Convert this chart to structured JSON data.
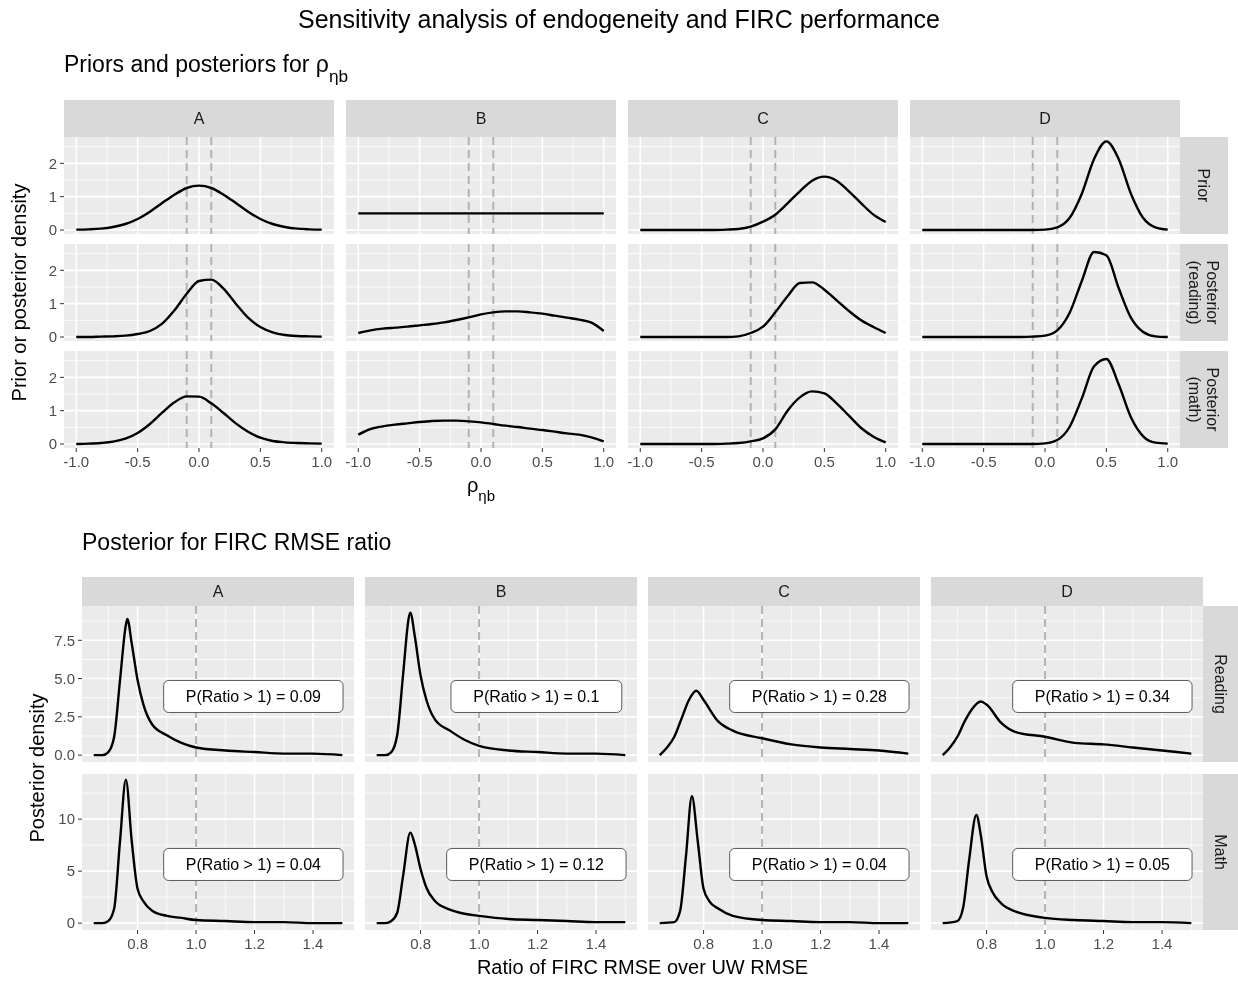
{
  "chart_data": [
    {
      "type": "other",
      "title": "Sensitivity analysis of endogeneity and FIRC performance"
    },
    {
      "type": "line",
      "title": "A",
      "subtitle": "Priors and posteriors for ρ$_{ηb}$",
      "x": [
        -1,
        -0.9,
        -0.8,
        -0.7,
        -0.6,
        -0.5,
        -0.4,
        -0.3,
        -0.2,
        -0.1,
        0,
        0.1,
        0.2,
        0.3,
        0.4,
        0.5,
        0.6,
        0.7,
        0.8,
        0.9,
        1
      ],
      "values": [
        0.01,
        0.02,
        0.04,
        0.09,
        0.18,
        0.33,
        0.55,
        0.81,
        1.06,
        1.26,
        1.33,
        1.26,
        1.06,
        0.81,
        0.55,
        0.33,
        0.18,
        0.09,
        0.04,
        0.02,
        0.01
      ],
      "color": "#000000",
      "xlim": [
        -1.1,
        1.1
      ],
      "ylim": [
        -0.12,
        2.79
      ],
      "xticks": [
        -1,
        -0.5,
        0,
        0.5,
        1
      ],
      "yticks": [
        0,
        1,
        2
      ],
      "grid": true,
      "tick_labels": "y",
      "ref_lines": [
        {
          "axis": "x",
          "value": -0.1,
          "color": "#b3b3b3",
          "line_style": "dashed"
        },
        {
          "axis": "x",
          "value": 0.1,
          "color": "#b3b3b3",
          "line_style": "dashed"
        }
      ]
    },
    {
      "type": "line",
      "title": "B",
      "x": [
        -1,
        1
      ],
      "values": [
        0.5,
        0.5
      ],
      "color": "#000000",
      "xlim": [
        -1.1,
        1.1
      ],
      "ylim": [
        -0.12,
        2.79
      ],
      "xticks": [
        -1,
        -0.5,
        0,
        0.5,
        1
      ],
      "yticks": [
        0,
        1,
        2
      ],
      "grid": true,
      "tick_labels": false,
      "ref_lines": [
        {
          "axis": "x",
          "value": -0.1,
          "color": "#b3b3b3",
          "line_style": "dashed"
        },
        {
          "axis": "x",
          "value": 0.1,
          "color": "#b3b3b3",
          "line_style": "dashed"
        }
      ]
    },
    {
      "type": "line",
      "title": "C",
      "x": [
        -1,
        -0.9,
        -0.8,
        -0.7,
        -0.6,
        -0.5,
        -0.4,
        -0.3,
        -0.2,
        -0.1,
        0,
        0.1,
        0.2,
        0.3,
        0.4,
        0.5,
        0.6,
        0.7,
        0.8,
        0.9,
        1
      ],
      "values": [
        0,
        0,
        0,
        0,
        0,
        0,
        0,
        0.01,
        0.03,
        0.1,
        0.25,
        0.46,
        0.8,
        1.16,
        1.48,
        1.6,
        1.48,
        1.16,
        0.8,
        0.46,
        0.24
      ],
      "color": "#000000",
      "xlim": [
        -1.1,
        1.1
      ],
      "ylim": [
        -0.12,
        2.79
      ],
      "xticks": [
        -1,
        -0.5,
        0,
        0.5,
        1
      ],
      "yticks": [
        0,
        1,
        2
      ],
      "grid": true,
      "tick_labels": false,
      "ref_lines": [
        {
          "axis": "x",
          "value": -0.1,
          "color": "#b3b3b3",
          "line_style": "dashed"
        },
        {
          "axis": "x",
          "value": 0.1,
          "color": "#b3b3b3",
          "line_style": "dashed"
        }
      ]
    },
    {
      "type": "line",
      "title": "D",
      "y2label": "Prior",
      "x": [
        -1,
        -0.9,
        -0.8,
        -0.7,
        -0.6,
        -0.5,
        -0.4,
        -0.3,
        -0.2,
        -0.1,
        0,
        0.1,
        0.2,
        0.3,
        0.4,
        0.5,
        0.6,
        0.7,
        0.8,
        0.9,
        1
      ],
      "values": [
        0,
        0,
        0,
        0,
        0,
        0,
        0,
        0,
        0,
        0,
        0.01,
        0.08,
        0.36,
        1.09,
        2.13,
        2.66,
        2.13,
        1.09,
        0.36,
        0.08,
        0.01
      ],
      "color": "#000000",
      "xlim": [
        -1.1,
        1.1
      ],
      "ylim": [
        -0.12,
        2.79
      ],
      "xticks": [
        -1,
        -0.5,
        0,
        0.5,
        1
      ],
      "yticks": [
        0,
        1,
        2
      ],
      "grid": true,
      "tick_labels": false,
      "ref_lines": [
        {
          "axis": "x",
          "value": -0.1,
          "color": "#b3b3b3",
          "line_style": "dashed"
        },
        {
          "axis": "x",
          "value": 0.1,
          "color": "#b3b3b3",
          "line_style": "dashed"
        }
      ]
    },
    {
      "type": "line",
      "ylabel": "Prior or posterior density",
      "x": [
        -1,
        -0.9,
        -0.8,
        -0.7,
        -0.6,
        -0.5,
        -0.4,
        -0.3,
        -0.2,
        -0.1,
        0,
        0.1,
        0.2,
        0.3,
        0.4,
        0.5,
        0.6,
        0.7,
        0.8,
        0.9,
        1
      ],
      "values": [
        0,
        0,
        0.01,
        0.02,
        0.04,
        0.09,
        0.18,
        0.4,
        0.8,
        1.3,
        1.68,
        1.72,
        1.45,
        1.0,
        0.58,
        0.3,
        0.14,
        0.06,
        0.03,
        0.02,
        0.01
      ],
      "color": "#000000",
      "xlim": [
        -1.1,
        1.1
      ],
      "ylim": [
        -0.12,
        2.79
      ],
      "xticks": [
        -1,
        -0.5,
        0,
        0.5,
        1
      ],
      "yticks": [
        0,
        1,
        2
      ],
      "grid": true,
      "tick_labels": "y",
      "ref_lines": [
        {
          "axis": "x",
          "value": -0.1,
          "color": "#b3b3b3",
          "line_style": "dashed"
        },
        {
          "axis": "x",
          "value": 0.1,
          "color": "#b3b3b3",
          "line_style": "dashed"
        }
      ]
    },
    {
      "type": "line",
      "x": [
        -1,
        -0.9,
        -0.8,
        -0.7,
        -0.6,
        -0.5,
        -0.4,
        -0.3,
        -0.2,
        -0.1,
        0,
        0.1,
        0.2,
        0.3,
        0.4,
        0.5,
        0.6,
        0.7,
        0.8,
        0.9,
        1
      ],
      "values": [
        0.12,
        0.2,
        0.25,
        0.28,
        0.31,
        0.35,
        0.39,
        0.44,
        0.51,
        0.59,
        0.68,
        0.74,
        0.77,
        0.77,
        0.74,
        0.7,
        0.64,
        0.58,
        0.52,
        0.43,
        0.18
      ],
      "color": "#000000",
      "xlim": [
        -1.1,
        1.1
      ],
      "ylim": [
        -0.12,
        2.79
      ],
      "xticks": [
        -1,
        -0.5,
        0,
        0.5,
        1
      ],
      "yticks": [
        0,
        1,
        2
      ],
      "grid": true,
      "tick_labels": false,
      "ref_lines": [
        {
          "axis": "x",
          "value": -0.1,
          "color": "#b3b3b3",
          "line_style": "dashed"
        },
        {
          "axis": "x",
          "value": 0.1,
          "color": "#b3b3b3",
          "line_style": "dashed"
        }
      ]
    },
    {
      "type": "line",
      "x": [
        -1,
        -0.9,
        -0.8,
        -0.7,
        -0.6,
        -0.5,
        -0.4,
        -0.3,
        -0.2,
        -0.1,
        0,
        0.1,
        0.2,
        0.3,
        0.4,
        0.5,
        0.6,
        0.7,
        0.8,
        0.9,
        1
      ],
      "values": [
        0,
        0,
        0,
        0,
        0,
        0,
        0,
        0,
        0.02,
        0.12,
        0.31,
        0.74,
        1.22,
        1.62,
        1.64,
        1.42,
        1.1,
        0.78,
        0.5,
        0.3,
        0.12
      ],
      "color": "#000000",
      "xlim": [
        -1.1,
        1.1
      ],
      "ylim": [
        -0.12,
        2.79
      ],
      "xticks": [
        -1,
        -0.5,
        0,
        0.5,
        1
      ],
      "yticks": [
        0,
        1,
        2
      ],
      "grid": true,
      "tick_labels": false,
      "ref_lines": [
        {
          "axis": "x",
          "value": -0.1,
          "color": "#b3b3b3",
          "line_style": "dashed"
        },
        {
          "axis": "x",
          "value": 0.1,
          "color": "#b3b3b3",
          "line_style": "dashed"
        }
      ]
    },
    {
      "type": "line",
      "y2label": "Posterior (reading)",
      "x": [
        -1,
        -0.9,
        -0.8,
        -0.7,
        -0.6,
        -0.5,
        -0.4,
        -0.3,
        -0.2,
        -0.1,
        0,
        0.1,
        0.2,
        0.3,
        0.4,
        0.5,
        0.6,
        0.7,
        0.8,
        0.9,
        1
      ],
      "values": [
        0,
        0,
        0,
        0,
        0,
        0,
        0,
        0,
        0,
        0.01,
        0.04,
        0.2,
        0.72,
        1.68,
        2.55,
        2.45,
        1.47,
        0.58,
        0.15,
        0.02,
        0
      ],
      "color": "#000000",
      "xlim": [
        -1.1,
        1.1
      ],
      "ylim": [
        -0.12,
        2.79
      ],
      "xticks": [
        -1,
        -0.5,
        0,
        0.5,
        1
      ],
      "yticks": [
        0,
        1,
        2
      ],
      "grid": true,
      "tick_labels": false,
      "ref_lines": [
        {
          "axis": "x",
          "value": -0.1,
          "color": "#b3b3b3",
          "line_style": "dashed"
        },
        {
          "axis": "x",
          "value": 0.1,
          "color": "#b3b3b3",
          "line_style": "dashed"
        }
      ]
    },
    {
      "type": "line",
      "x": [
        -1,
        -0.9,
        -0.8,
        -0.7,
        -0.6,
        -0.5,
        -0.4,
        -0.3,
        -0.2,
        -0.1,
        0,
        0.1,
        0.2,
        0.3,
        0.4,
        0.5,
        0.6,
        0.7,
        0.8,
        0.9,
        1
      ],
      "values": [
        0,
        0.01,
        0.03,
        0.07,
        0.16,
        0.33,
        0.6,
        0.94,
        1.25,
        1.43,
        1.42,
        1.22,
        0.93,
        0.62,
        0.37,
        0.19,
        0.09,
        0.05,
        0.03,
        0.02,
        0.01
      ],
      "color": "#000000",
      "xlim": [
        -1.1,
        1.1
      ],
      "ylim": [
        -0.12,
        2.79
      ],
      "xticks": [
        {
          "value": -1,
          "label": "-1.0"
        },
        -0.5,
        {
          "value": 0,
          "label": "0.0"
        },
        0.5,
        {
          "value": 1,
          "label": "1.0"
        }
      ],
      "yticks": [
        0,
        1,
        2
      ],
      "grid": true,
      "ref_lines": [
        {
          "axis": "x",
          "value": -0.1,
          "color": "#b3b3b3",
          "line_style": "dashed"
        },
        {
          "axis": "x",
          "value": 0.1,
          "color": "#b3b3b3",
          "line_style": "dashed"
        }
      ]
    },
    {
      "type": "line",
      "xlabel": "ρ$_{ηb}$",
      "x": [
        -1,
        -0.9,
        -0.8,
        -0.7,
        -0.6,
        -0.5,
        -0.4,
        -0.3,
        -0.2,
        -0.1,
        0,
        0.1,
        0.2,
        0.3,
        0.4,
        0.5,
        0.6,
        0.7,
        0.8,
        0.9,
        1
      ],
      "values": [
        0.28,
        0.45,
        0.53,
        0.58,
        0.62,
        0.66,
        0.69,
        0.7,
        0.7,
        0.68,
        0.65,
        0.6,
        0.55,
        0.51,
        0.46,
        0.42,
        0.37,
        0.32,
        0.28,
        0.2,
        0.08
      ],
      "color": "#000000",
      "xlim": [
        -1.1,
        1.1
      ],
      "ylim": [
        -0.12,
        2.79
      ],
      "xticks": [
        {
          "value": -1,
          "label": "-1.0"
        },
        -0.5,
        {
          "value": 0,
          "label": "0.0"
        },
        0.5,
        {
          "value": 1,
          "label": "1.0"
        }
      ],
      "yticks": [
        0,
        1,
        2
      ],
      "grid": true,
      "tick_labels": "x",
      "ref_lines": [
        {
          "axis": "x",
          "value": -0.1,
          "color": "#b3b3b3",
          "line_style": "dashed"
        },
        {
          "axis": "x",
          "value": 0.1,
          "color": "#b3b3b3",
          "line_style": "dashed"
        }
      ]
    },
    {
      "type": "line",
      "x": [
        -1,
        -0.9,
        -0.8,
        -0.7,
        -0.6,
        -0.5,
        -0.4,
        -0.3,
        -0.2,
        -0.1,
        0,
        0.1,
        0.2,
        0.3,
        0.4,
        0.5,
        0.6,
        0.7,
        0.8,
        0.9,
        1
      ],
      "values": [
        0,
        0,
        0,
        0,
        0,
        0,
        0,
        0.01,
        0.03,
        0.08,
        0.17,
        0.44,
        1.0,
        1.4,
        1.58,
        1.52,
        1.22,
        0.85,
        0.48,
        0.22,
        0.05
      ],
      "color": "#000000",
      "xlim": [
        -1.1,
        1.1
      ],
      "ylim": [
        -0.12,
        2.79
      ],
      "xticks": [
        {
          "value": -1,
          "label": "-1.0"
        },
        -0.5,
        {
          "value": 0,
          "label": "0.0"
        },
        0.5,
        {
          "value": 1,
          "label": "1.0"
        }
      ],
      "yticks": [
        0,
        1,
        2
      ],
      "grid": true,
      "tick_labels": "x",
      "ref_lines": [
        {
          "axis": "x",
          "value": -0.1,
          "color": "#b3b3b3",
          "line_style": "dashed"
        },
        {
          "axis": "x",
          "value": 0.1,
          "color": "#b3b3b3",
          "line_style": "dashed"
        }
      ]
    },
    {
      "type": "line",
      "y2label": "Posterior (math)",
      "x": [
        -1,
        -0.9,
        -0.8,
        -0.7,
        -0.6,
        -0.5,
        -0.4,
        -0.3,
        -0.2,
        -0.1,
        0,
        0.1,
        0.2,
        0.3,
        0.4,
        0.5,
        0.6,
        0.7,
        0.8,
        0.9,
        1
      ],
      "values": [
        0,
        0,
        0,
        0,
        0,
        0,
        0,
        0,
        0,
        0,
        0.02,
        0.12,
        0.51,
        1.37,
        2.33,
        2.55,
        1.79,
        0.8,
        0.23,
        0.04,
        0.01
      ],
      "color": "#000000",
      "xlim": [
        -1.1,
        1.1
      ],
      "ylim": [
        -0.12,
        2.79
      ],
      "xticks": [
        {
          "value": -1,
          "label": "-1.0"
        },
        -0.5,
        {
          "value": 0,
          "label": "0.0"
        },
        0.5,
        {
          "value": 1,
          "label": "1.0"
        }
      ],
      "yticks": [
        0,
        1,
        2
      ],
      "grid": true,
      "tick_labels": "x",
      "ref_lines": [
        {
          "axis": "x",
          "value": -0.1,
          "color": "#b3b3b3",
          "line_style": "dashed"
        },
        {
          "axis": "x",
          "value": 0.1,
          "color": "#b3b3b3",
          "line_style": "dashed"
        }
      ]
    },
    {
      "type": "line",
      "title": "A",
      "subtitle": "Posterior for FIRC RMSE ratio",
      "ylabel": "Posterior density",
      "x": [
        0.65,
        0.68,
        0.7,
        0.72,
        0.74,
        0.76,
        0.765,
        0.78,
        0.8,
        0.82,
        0.85,
        0.9,
        0.95,
        1.0,
        1.1,
        1.2,
        1.3,
        1.4,
        1.5
      ],
      "values": [
        0,
        0,
        0.2,
        1.2,
        4.9,
        8.5,
        8.9,
        7.3,
        4.9,
        3.3,
        2.0,
        1.3,
        0.8,
        0.5,
        0.3,
        0.2,
        0.1,
        0.1,
        0
      ],
      "color": "#000000",
      "xlim": [
        0.61,
        1.54
      ],
      "ylim": [
        -0.45,
        9.74
      ],
      "xticks": [
        0.8,
        1,
        1.2,
        1.4
      ],
      "yticks": [
        {
          "value": 0,
          "label": "0.0"
        },
        2.5,
        {
          "value": 5,
          "label": "5.0"
        },
        7.5
      ],
      "grid": true,
      "tick_labels": "y",
      "ref_lines": [
        {
          "axis": "x",
          "value": 1,
          "color": "#b3b3b3",
          "line_style": "dashed"
        }
      ],
      "annotations": [
        "P(Ratio > 1) = 0.09"
      ]
    },
    {
      "type": "line",
      "title": "B",
      "x": [
        0.65,
        0.68,
        0.7,
        0.72,
        0.74,
        0.76,
        0.765,
        0.78,
        0.8,
        0.82,
        0.85,
        0.9,
        0.95,
        1.0,
        1.1,
        1.2,
        1.3,
        1.4,
        1.5
      ],
      "values": [
        0,
        0,
        0.2,
        1.3,
        5.2,
        9.0,
        9.3,
        7.8,
        5.2,
        3.6,
        2.3,
        1.6,
        1.0,
        0.6,
        0.3,
        0.2,
        0.1,
        0.1,
        0
      ],
      "color": "#000000",
      "xlim": [
        0.61,
        1.54
      ],
      "ylim": [
        -0.45,
        9.74
      ],
      "xticks": [
        0.8,
        1,
        1.2,
        1.4
      ],
      "yticks": [
        0,
        2.5,
        5,
        7.5
      ],
      "grid": true,
      "tick_labels": false,
      "ref_lines": [
        {
          "axis": "x",
          "value": 1,
          "color": "#b3b3b3",
          "line_style": "dashed"
        }
      ],
      "annotations": [
        "P(Ratio > 1) = 0.1"
      ]
    },
    {
      "type": "line",
      "title": "C",
      "x": [
        0.65,
        0.675,
        0.7,
        0.725,
        0.75,
        0.775,
        0.8,
        0.85,
        0.9,
        1.0,
        1.1,
        1.2,
        1.3,
        1.4,
        1.5
      ],
      "values": [
        0,
        0.5,
        1.2,
        2.4,
        3.6,
        4.2,
        3.6,
        2.2,
        1.6,
        1.1,
        0.7,
        0.5,
        0.4,
        0.3,
        0.1
      ],
      "color": "#000000",
      "xlim": [
        0.61,
        1.54
      ],
      "ylim": [
        -0.45,
        9.74
      ],
      "xticks": [
        0.8,
        1,
        1.2,
        1.4
      ],
      "yticks": [
        0,
        2.5,
        5,
        7.5
      ],
      "grid": true,
      "tick_labels": false,
      "ref_lines": [
        {
          "axis": "x",
          "value": 1,
          "color": "#b3b3b3",
          "line_style": "dashed"
        }
      ],
      "annotations": [
        "P(Ratio > 1) = 0.28"
      ]
    },
    {
      "type": "line",
      "title": "D",
      "y2label": "Reading",
      "x": [
        0.65,
        0.675,
        0.7,
        0.725,
        0.75,
        0.78,
        0.8,
        0.85,
        0.9,
        1.0,
        1.1,
        1.2,
        1.3,
        1.4,
        1.5
      ],
      "values": [
        0,
        0.5,
        1.2,
        2.2,
        3.0,
        3.5,
        3.3,
        2.1,
        1.5,
        1.2,
        0.8,
        0.7,
        0.5,
        0.3,
        0.1
      ],
      "color": "#000000",
      "xlim": [
        0.61,
        1.54
      ],
      "ylim": [
        -0.45,
        9.74
      ],
      "xticks": [
        0.8,
        1,
        1.2,
        1.4
      ],
      "yticks": [
        0,
        2.5,
        5,
        7.5
      ],
      "grid": true,
      "tick_labels": false,
      "ref_lines": [
        {
          "axis": "x",
          "value": 1,
          "color": "#b3b3b3",
          "line_style": "dashed"
        }
      ],
      "annotations": [
        "P(Ratio > 1) = 0.34"
      ]
    },
    {
      "type": "line",
      "x": [
        0.65,
        0.68,
        0.7,
        0.72,
        0.74,
        0.76,
        0.78,
        0.8,
        0.82,
        0.85,
        0.9,
        0.95,
        1.0,
        1.1,
        1.2,
        1.3,
        1.4,
        1.5
      ],
      "values": [
        0,
        0,
        0.2,
        1.4,
        7.9,
        13.8,
        7.9,
        3.3,
        2.1,
        1.2,
        0.7,
        0.5,
        0.3,
        0.2,
        0.1,
        0.1,
        0,
        0
      ],
      "color": "#000000",
      "xlim": [
        0.61,
        1.54
      ],
      "ylim": [
        -0.66,
        14.34
      ],
      "xticks": [
        0.8,
        {
          "value": 1,
          "label": "1.0"
        },
        1.2,
        1.4
      ],
      "yticks": [
        0,
        5,
        10
      ],
      "grid": true,
      "ref_lines": [
        {
          "axis": "x",
          "value": 1,
          "color": "#b3b3b3",
          "line_style": "dashed"
        }
      ],
      "annotations": [
        "P(Ratio > 1) = 0.04"
      ]
    },
    {
      "type": "line",
      "xlabel": "Ratio of FIRC RMSE over UW RMSE",
      "x": [
        0.65,
        0.68,
        0.7,
        0.72,
        0.74,
        0.765,
        0.78,
        0.8,
        0.82,
        0.85,
        0.9,
        0.95,
        1.0,
        1.1,
        1.2,
        1.3,
        1.4,
        1.5
      ],
      "values": [
        0,
        0,
        0.2,
        1.0,
        4.5,
        8.7,
        7.6,
        5.2,
        3.4,
        2.1,
        1.3,
        0.9,
        0.7,
        0.4,
        0.3,
        0.2,
        0.1,
        0.1
      ],
      "color": "#000000",
      "xlim": [
        0.61,
        1.54
      ],
      "ylim": [
        -0.66,
        14.34
      ],
      "xticks": [
        0.8,
        {
          "value": 1,
          "label": "1.0"
        },
        1.2,
        1.4
      ],
      "yticks": [
        0,
        5,
        10
      ],
      "grid": true,
      "tick_labels": "x",
      "ref_lines": [
        {
          "axis": "x",
          "value": 1,
          "color": "#b3b3b3",
          "line_style": "dashed"
        }
      ],
      "annotations": [
        "P(Ratio > 1) = 0.12"
      ]
    },
    {
      "type": "line",
      "x": [
        0.65,
        0.7,
        0.72,
        0.74,
        0.76,
        0.78,
        0.8,
        0.82,
        0.85,
        0.9,
        1.0,
        1.1,
        1.2,
        1.3,
        1.4,
        1.5
      ],
      "values": [
        0,
        0.1,
        1.2,
        6.5,
        12.2,
        7.9,
        3.3,
        2.1,
        1.4,
        0.7,
        0.3,
        0.2,
        0.1,
        0.1,
        0,
        0
      ],
      "color": "#000000",
      "xlim": [
        0.61,
        1.54
      ],
      "ylim": [
        -0.66,
        14.34
      ],
      "xticks": [
        0.8,
        {
          "value": 1,
          "label": "1.0"
        },
        1.2,
        1.4
      ],
      "yticks": [
        0,
        5,
        10
      ],
      "grid": true,
      "tick_labels": "x",
      "ref_lines": [
        {
          "axis": "x",
          "value": 1,
          "color": "#b3b3b3",
          "line_style": "dashed"
        }
      ],
      "annotations": [
        "P(Ratio > 1) = 0.04"
      ]
    },
    {
      "type": "line",
      "y2label": "Math",
      "x": [
        0.65,
        0.7,
        0.72,
        0.74,
        0.765,
        0.78,
        0.8,
        0.82,
        0.85,
        0.9,
        1.0,
        1.1,
        1.2,
        1.3,
        1.4,
        1.5
      ],
      "values": [
        0,
        0.2,
        1.5,
        6.0,
        10.4,
        8.5,
        4.5,
        3.0,
        1.9,
        1.1,
        0.5,
        0.3,
        0.2,
        0.1,
        0.1,
        0
      ],
      "color": "#000000",
      "xlim": [
        0.61,
        1.54
      ],
      "ylim": [
        -0.66,
        14.34
      ],
      "xticks": [
        0.8,
        {
          "value": 1,
          "label": "1.0"
        },
        1.2,
        1.4
      ],
      "yticks": [
        0,
        5,
        10
      ],
      "grid": true,
      "tick_labels": "x",
      "ref_lines": [
        {
          "axis": "x",
          "value": 1,
          "color": "#b3b3b3",
          "line_style": "dashed"
        }
      ],
      "annotations": [
        "P(Ratio > 1) = 0.05"
      ]
    }
  ]
}
